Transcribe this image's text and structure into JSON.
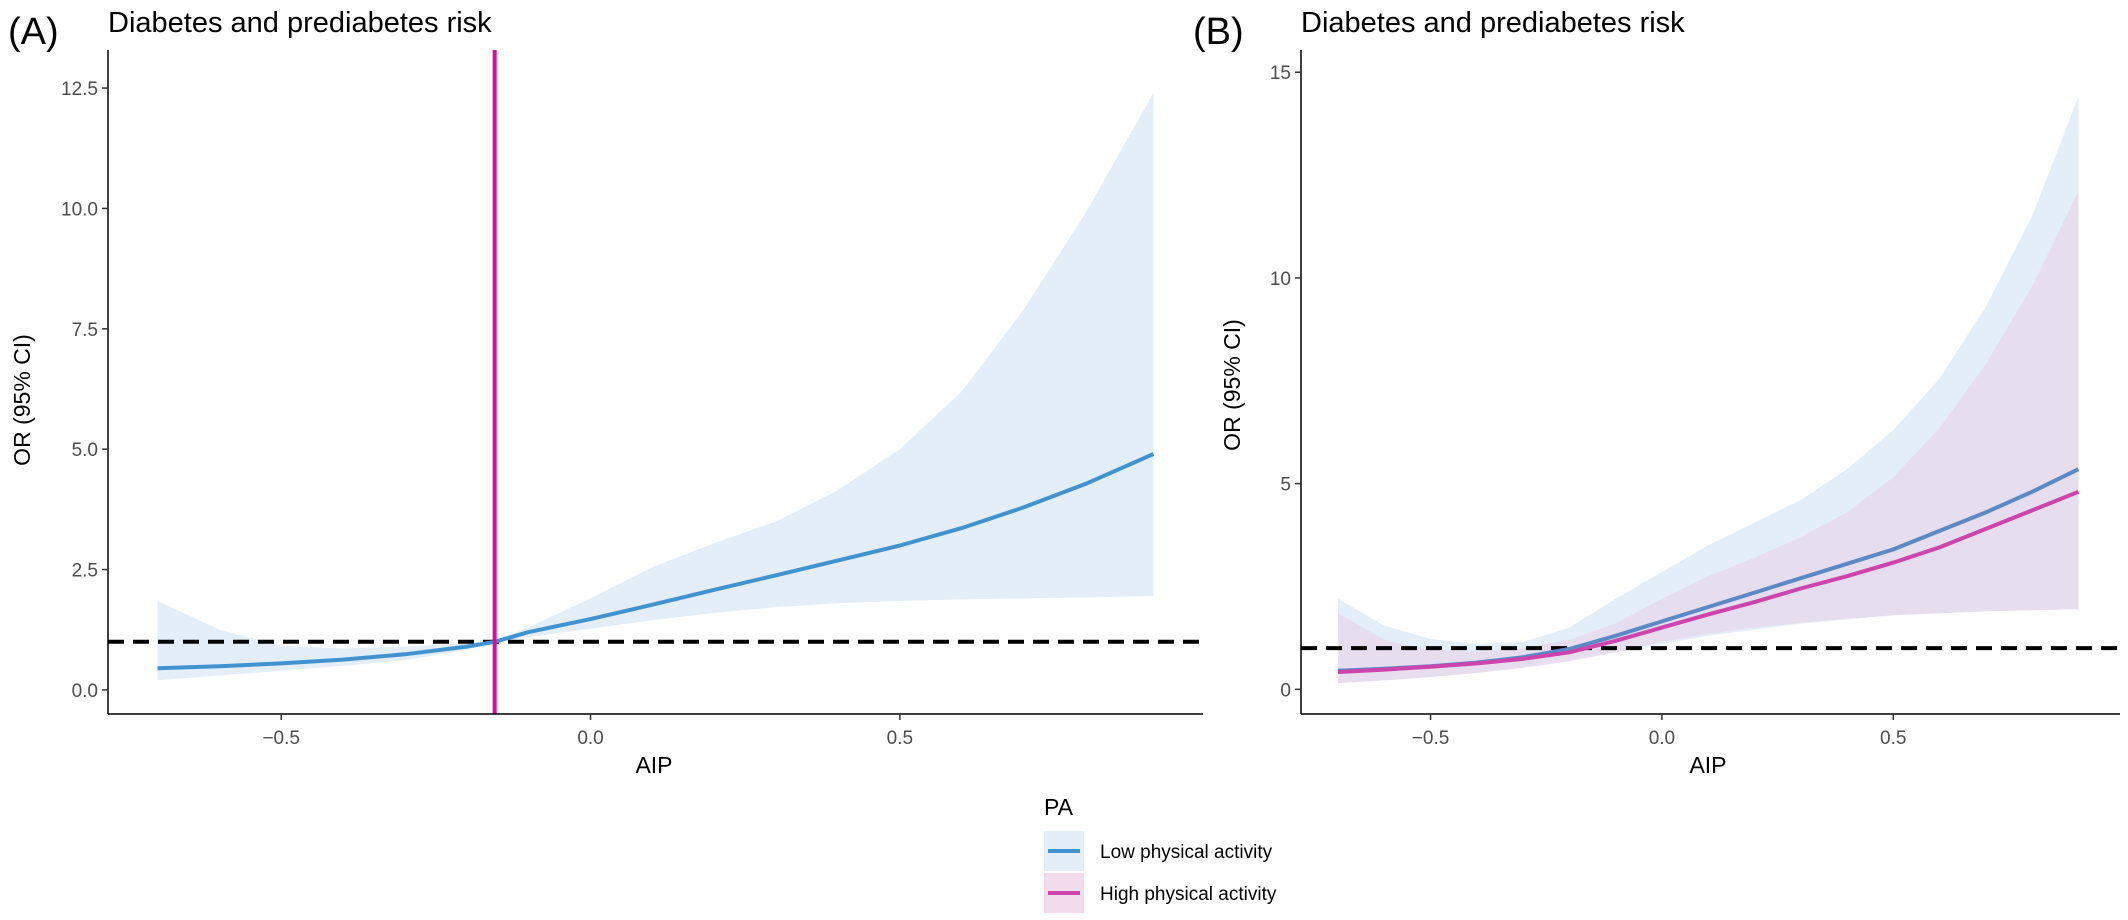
{
  "chart_data": [
    {
      "panel_label": "(A)",
      "type": "line",
      "title": "Diabetes and prediabetes risk",
      "xlabel": "AIP",
      "ylabel": "OR (95% CI)",
      "xlim": [
        -0.78,
        0.99
      ],
      "ylim": [
        -0.5,
        13.0
      ],
      "x_ticks": [
        -0.5,
        0.0,
        0.5
      ],
      "x_tick_labels": [
        "−0.5",
        "0.0",
        "0.5"
      ],
      "y_ticks": [
        0,
        2.5,
        5,
        7.5,
        10,
        12.5
      ],
      "y_tick_labels": [
        "0.0",
        "2.5",
        "5.0",
        "7.5",
        "10.0",
        "12.5"
      ],
      "grid": false,
      "reference_hline": 1.0,
      "reference_vline": -0.155,
      "reference_vline_color": "#d4109c",
      "series": [
        {
          "name": "Low physical activity",
          "color": "#4193cf",
          "band_color": "#e3eef9",
          "x": [
            -0.7,
            -0.6,
            -0.5,
            -0.4,
            -0.3,
            -0.2,
            -0.155,
            -0.1,
            0.0,
            0.1,
            0.2,
            0.3,
            0.4,
            0.5,
            0.6,
            0.7,
            0.8,
            0.91
          ],
          "y": [
            0.45,
            0.49,
            0.55,
            0.63,
            0.74,
            0.9,
            1.0,
            1.2,
            1.47,
            1.77,
            2.08,
            2.38,
            2.69,
            3.0,
            3.36,
            3.79,
            4.28,
            4.9
          ],
          "lower": [
            0.2,
            0.3,
            0.4,
            0.5,
            0.62,
            0.83,
            1.0,
            1.1,
            1.27,
            1.45,
            1.6,
            1.72,
            1.8,
            1.85,
            1.88,
            1.9,
            1.92,
            1.95
          ],
          "upper": [
            1.85,
            1.25,
            0.92,
            0.86,
            0.9,
            0.97,
            1.0,
            1.3,
            1.9,
            2.55,
            3.05,
            3.5,
            4.15,
            5.0,
            6.2,
            7.9,
            9.9,
            12.4
          ]
        }
      ]
    },
    {
      "panel_label": "(B)",
      "type": "line",
      "title": "Diabetes and prediabetes risk",
      "xlabel": "AIP",
      "ylabel": "OR (95% CI)",
      "xlim": [
        -0.78,
        0.99
      ],
      "ylim": [
        -0.6,
        15.2
      ],
      "x_ticks": [
        -0.5,
        0.0,
        0.5
      ],
      "x_tick_labels": [
        "−0.5",
        "0.0",
        "0.5"
      ],
      "y_ticks": [
        0,
        5,
        10,
        15
      ],
      "y_tick_labels": [
        "0",
        "5",
        "10",
        "15"
      ],
      "grid": false,
      "reference_hline": 1.0,
      "series": [
        {
          "name": "Low physical activity",
          "color": "#5b89c6",
          "band_color": "#e3eef9",
          "x": [
            -0.7,
            -0.6,
            -0.5,
            -0.4,
            -0.3,
            -0.2,
            -0.1,
            0.0,
            0.1,
            0.2,
            0.3,
            0.4,
            0.5,
            0.6,
            0.7,
            0.8,
            0.9
          ],
          "y": [
            0.45,
            0.5,
            0.56,
            0.65,
            0.78,
            0.98,
            1.3,
            1.65,
            2.0,
            2.35,
            2.7,
            3.05,
            3.4,
            3.85,
            4.3,
            4.8,
            5.35
          ],
          "lower": [
            0.15,
            0.22,
            0.3,
            0.4,
            0.55,
            0.78,
            0.9,
            1.1,
            1.3,
            1.45,
            1.6,
            1.7,
            1.8,
            1.85,
            1.9,
            1.92,
            1.95
          ],
          "upper": [
            2.2,
            1.55,
            1.22,
            1.1,
            1.15,
            1.5,
            2.2,
            2.85,
            3.5,
            4.05,
            4.6,
            5.35,
            6.3,
            7.55,
            9.3,
            11.5,
            14.4
          ]
        },
        {
          "name": "High physical activity",
          "color": "#cc44ac",
          "band_color": "#e6d8eb",
          "x": [
            -0.7,
            -0.6,
            -0.5,
            -0.4,
            -0.3,
            -0.2,
            -0.1,
            0.0,
            0.1,
            0.2,
            0.3,
            0.4,
            0.5,
            0.6,
            0.7,
            0.8,
            0.9
          ],
          "y": [
            0.42,
            0.48,
            0.55,
            0.63,
            0.74,
            0.9,
            1.18,
            1.5,
            1.82,
            2.12,
            2.45,
            2.75,
            3.08,
            3.45,
            3.9,
            4.35,
            4.8
          ],
          "lower": [
            0.15,
            0.22,
            0.3,
            0.4,
            0.52,
            0.68,
            0.9,
            1.15,
            1.35,
            1.5,
            1.62,
            1.72,
            1.8,
            1.85,
            1.9,
            1.92,
            1.95
          ],
          "upper": [
            1.85,
            1.2,
            0.95,
            0.92,
            1.0,
            1.2,
            1.6,
            2.2,
            2.75,
            3.2,
            3.7,
            4.3,
            5.15,
            6.35,
            7.9,
            9.8,
            12.1
          ]
        }
      ]
    }
  ],
  "legend": {
    "title": "PA",
    "placement": "bottom-center",
    "items": [
      {
        "label": "Low physical activity",
        "color": "#4193cf",
        "band_color": "#e3eef9"
      },
      {
        "label": "High physical activity",
        "color": "#cc44ac",
        "band_color": "#f2dcec"
      }
    ]
  }
}
